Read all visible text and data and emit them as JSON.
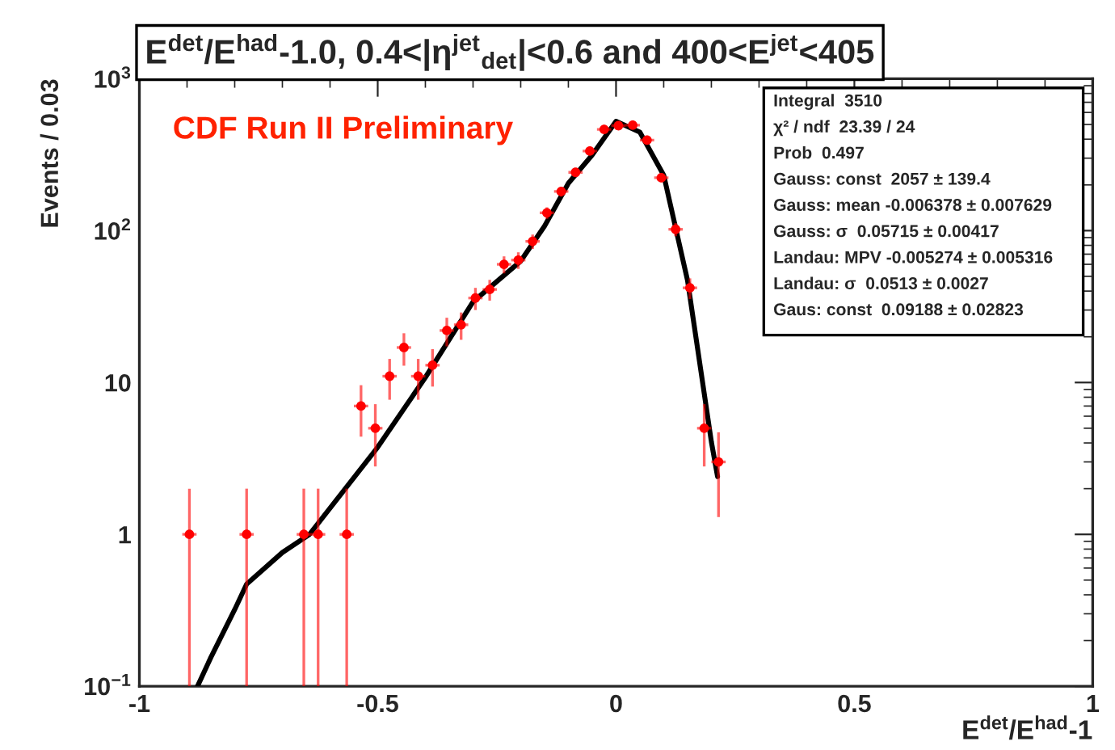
{
  "chart_data": {
    "type": "scatter",
    "title": "E$^{det}$/E$^{had}$-1.0, 0.4<|η$^{jet}$$_{det}$|<0.6 and 400<E$^{jet}$<405",
    "xlabel": "E$^{det}$/E$^{had}$-1",
    "ylabel": "Events / 0.03",
    "annotations": [
      "CDF Run II Preliminary",
      "Integral  3510",
      "χ² / ndf  23.39 / 24",
      "Prob  0.497",
      "Gauss: const  2057 ± 139.4",
      "Gauss: mean -0.006378 ± 0.007629",
      "Gauss: σ  0.05715 ± 0.00417",
      "Landau: MPV -0.005274 ± 0.005316",
      "Landau: σ  0.0513 ± 0.0027",
      "Gaus: const  0.09188 ± 0.02823"
    ],
    "log": "y",
    "xlim": [
      -1,
      1
    ],
    "ylim": [
      0.1,
      1000
    ],
    "xticks": [
      -1,
      -0.5,
      0,
      0.5,
      1
    ],
    "yticks": [
      {
        "value": 0.1,
        "label": "10$^{−1}$"
      },
      1,
      10,
      {
        "value": 100,
        "label": "10$^{2}$"
      },
      {
        "value": 1000,
        "label": "10$^{3}$"
      }
    ],
    "grid": false,
    "legend": false,
    "series": [
      {
        "color": "#ff0000",
        "marker": "circle",
        "x": [
          -0.895,
          -0.775,
          -0.655,
          -0.625,
          -0.565,
          -0.535,
          -0.505,
          -0.475,
          -0.445,
          -0.415,
          -0.385,
          -0.355,
          -0.325,
          -0.295,
          -0.265,
          -0.235,
          -0.205,
          -0.175,
          -0.145,
          -0.115,
          -0.085,
          -0.055,
          -0.025,
          0.005,
          0.035,
          0.065,
          0.095,
          0.125,
          0.155,
          0.185,
          0.215
        ],
        "values": [
          1,
          1,
          1,
          1,
          1,
          7,
          5,
          11,
          17,
          11,
          13,
          22,
          24,
          36,
          41,
          60,
          64,
          85,
          131,
          181,
          242,
          334,
          464,
          491,
          495,
          394,
          223,
          102,
          42,
          5,
          3
        ],
        "errors": [
          [
            0.1,
            2
          ],
          [
            0.1,
            2
          ],
          [
            0.1,
            2
          ],
          [
            0.1,
            2
          ],
          [
            0.1,
            2
          ],
          2.6,
          2.2,
          3.3,
          4.1,
          3.3,
          3.6,
          4.7,
          4.9,
          6,
          6.4,
          7.7,
          8,
          9.2,
          11.4,
          13.5,
          15.6,
          18.3,
          21.5,
          22.2,
          22.2,
          19.8,
          14.9,
          10.1,
          6.5,
          2.2,
          1.7
        ],
        "xerrors": [
          0.015,
          0.015,
          0.015,
          0.015,
          0.015,
          0.015,
          0.015,
          0.015,
          0.015,
          0.015,
          0.015,
          0.015,
          0.015,
          0.015,
          0.015,
          0.015,
          0.015,
          0.015,
          0.015,
          0.015,
          0.015,
          0.015,
          0.015,
          0.015,
          0.015,
          0.015,
          0.015,
          0.015,
          0.015,
          0.015,
          0.015
        ]
      },
      {
        "type": "line",
        "color": "#000000",
        "line_style": "solid",
        "x": [
          -0.878,
          -0.85,
          -0.8,
          -0.775,
          -0.7,
          -0.643,
          -0.5,
          -0.4,
          -0.3,
          -0.2,
          -0.15,
          -0.1,
          -0.05,
          0,
          0.05,
          0.1,
          0.15,
          0.2,
          0.213
        ],
        "values": [
          0.1,
          0.155,
          0.32,
          0.47,
          0.76,
          1,
          3.75,
          10.8,
          34,
          63,
          107,
          205,
          315,
          525,
          445,
          232,
          47,
          4.07,
          2.4
        ]
      }
    ]
  }
}
